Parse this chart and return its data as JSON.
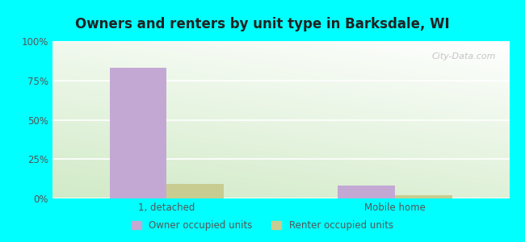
{
  "title": "Owners and renters by unit type in Barksdale, WI",
  "categories": [
    "1, detached",
    "Mobile home"
  ],
  "owner_values": [
    83,
    8
  ],
  "renter_values": [
    9,
    2
  ],
  "owner_color": "#c4a8d4",
  "renter_color": "#c8cc90",
  "ylim": [
    0,
    100
  ],
  "yticks": [
    0,
    25,
    50,
    75,
    100
  ],
  "ytick_labels": [
    "0%",
    "25%",
    "50%",
    "75%",
    "100%"
  ],
  "legend_owner": "Owner occupied units",
  "legend_renter": "Renter occupied units",
  "bg_color": "#00FFFF",
  "watermark": "City-Data.com",
  "bar_width": 0.25,
  "figsize": [
    6.5,
    3.0
  ],
  "dpi": 100
}
